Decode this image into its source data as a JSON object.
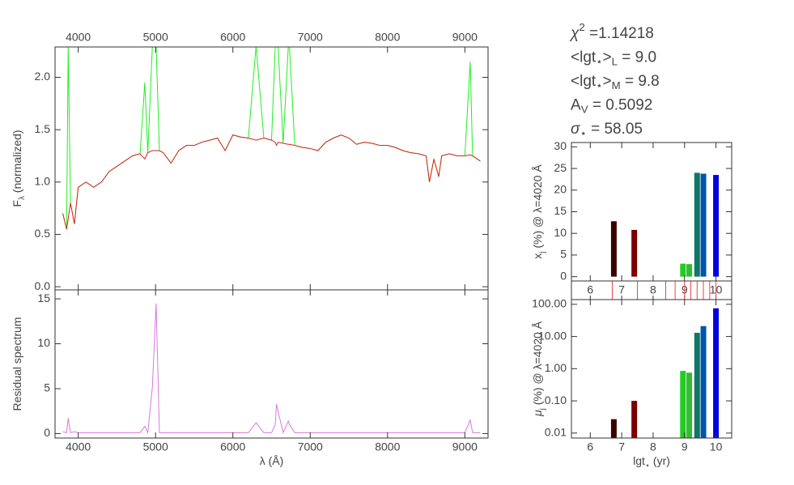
{
  "chart_data": [
    {
      "type": "line",
      "annotations": [
        [
          {
            "text": "χ"
          },
          {
            "sup": "2"
          },
          {
            "text": " =1.14218"
          }
        ],
        [
          {
            "text": "<lgt"
          },
          {
            "sub": "⋆"
          },
          {
            "text": ">"
          },
          {
            "sub": "L"
          },
          {
            "text": " = 9.0"
          }
        ],
        [
          {
            "text": "<lgt"
          },
          {
            "sub": "⋆"
          },
          {
            "text": ">"
          },
          {
            "sub": "M"
          },
          {
            "text": " = 9.8"
          }
        ],
        [
          {
            "text": "A"
          },
          {
            "sub": "V"
          },
          {
            "text": " = 0.5092"
          }
        ],
        [
          {
            "text": "σ"
          },
          {
            "sub": "⋆"
          },
          {
            "text": " = 58.05"
          }
        ]
      ],
      "ylabel": [
        {
          "text": "F"
        },
        {
          "sub": "λ"
        },
        {
          "text": " (normalized)"
        }
      ],
      "x": [
        3800,
        3850,
        3870,
        3900,
        3950,
        4000,
        4100,
        4200,
        4300,
        4400,
        4500,
        4600,
        4700,
        4800,
        4861,
        4900,
        4959,
        5007,
        5050,
        5100,
        5200,
        5300,
        5400,
        5500,
        5600,
        5700,
        5800,
        5900,
        6000,
        6100,
        6200,
        6300,
        6400,
        6500,
        6548,
        6563,
        6584,
        6650,
        6717,
        6731,
        6800,
        6900,
        7000,
        7100,
        7200,
        7300,
        7400,
        7500,
        7600,
        7700,
        7800,
        7900,
        8000,
        8100,
        8200,
        8300,
        8400,
        8500,
        8542,
        8600,
        8662,
        8700,
        8800,
        8900,
        9000,
        9069,
        9100,
        9200
      ],
      "series": [
        {
          "color": "#22ee22",
          "values": [
            0.7,
            0.55,
            2.3,
            0.8,
            0.6,
            0.95,
            1.0,
            0.95,
            1.0,
            1.1,
            1.15,
            1.2,
            1.25,
            1.27,
            1.95,
            1.28,
            2.3,
            2.3,
            1.3,
            1.28,
            1.18,
            1.3,
            1.35,
            1.35,
            1.38,
            1.4,
            1.42,
            1.3,
            1.45,
            1.43,
            1.42,
            2.3,
            1.42,
            1.4,
            2.3,
            2.3,
            2.3,
            1.37,
            2.3,
            2.3,
            1.35,
            1.33,
            1.32,
            1.3,
            1.38,
            1.42,
            1.45,
            1.42,
            1.36,
            1.38,
            1.37,
            1.35,
            1.35,
            1.33,
            1.3,
            1.28,
            1.27,
            1.25,
            1.0,
            1.22,
            1.05,
            1.25,
            1.27,
            1.25,
            1.25,
            2.15,
            1.25,
            1.2
          ]
        },
        {
          "color": "#dd2222",
          "values": [
            0.7,
            0.55,
            0.65,
            0.8,
            0.6,
            0.95,
            1.0,
            0.95,
            1.0,
            1.1,
            1.15,
            1.2,
            1.25,
            1.27,
            1.22,
            1.28,
            1.3,
            1.3,
            1.3,
            1.28,
            1.18,
            1.3,
            1.35,
            1.35,
            1.38,
            1.4,
            1.42,
            1.3,
            1.45,
            1.43,
            1.42,
            1.4,
            1.42,
            1.4,
            1.38,
            1.35,
            1.38,
            1.37,
            1.36,
            1.36,
            1.35,
            1.33,
            1.32,
            1.3,
            1.38,
            1.42,
            1.45,
            1.42,
            1.36,
            1.38,
            1.37,
            1.35,
            1.35,
            1.33,
            1.3,
            1.28,
            1.27,
            1.25,
            1.0,
            1.22,
            1.05,
            1.25,
            1.27,
            1.25,
            1.25,
            1.26,
            1.25,
            1.2
          ]
        }
      ],
      "xlim": [
        3700,
        9300
      ],
      "ylim": [
        -0.03,
        2.29
      ],
      "xticks": [
        4000,
        5000,
        6000,
        7000,
        8000,
        9000
      ],
      "yticks": [
        {
          "value": 0,
          "label": "0.0"
        },
        0.5,
        {
          "value": 1,
          "label": "1.0"
        },
        1.5,
        {
          "value": 2,
          "label": "2.0"
        }
      ]
    },
    {
      "type": "line",
      "ylabel": [
        {
          "text": "Residual spectrum"
        }
      ],
      "xlabel": [
        {
          "text": "λ (Å)"
        }
      ],
      "x": [
        3800,
        3850,
        3870,
        3900,
        3950,
        4000,
        4100,
        4200,
        4300,
        4400,
        4500,
        4600,
        4700,
        4800,
        4861,
        4900,
        4959,
        5007,
        5050,
        5100,
        5200,
        5300,
        5400,
        5500,
        5600,
        5700,
        5800,
        5900,
        6000,
        6100,
        6200,
        6300,
        6400,
        6500,
        6548,
        6563,
        6584,
        6650,
        6717,
        6731,
        6800,
        6900,
        7000,
        7100,
        7200,
        7300,
        7400,
        7500,
        7600,
        7700,
        7800,
        7900,
        8000,
        8100,
        8200,
        8300,
        8400,
        8500,
        8542,
        8600,
        8662,
        8700,
        8800,
        8900,
        9000,
        9069,
        9100,
        9200
      ],
      "series": [
        {
          "color": "#dd77dd",
          "values": [
            0.2,
            0.1,
            1.7,
            0.1,
            0.2,
            0.1,
            0.1,
            0.1,
            0.1,
            0.1,
            0.1,
            0.1,
            0.1,
            0.1,
            0.8,
            0.1,
            5.2,
            14.5,
            0.1,
            0.1,
            0.1,
            0.1,
            0.1,
            0.1,
            0.1,
            0.1,
            0.1,
            0.1,
            0.1,
            0.1,
            0.1,
            1.2,
            0.1,
            0.1,
            1.0,
            3.3,
            2.5,
            0.1,
            1.4,
            1.0,
            0.1,
            0.1,
            0.1,
            0.1,
            0.1,
            0.1,
            0.1,
            0.1,
            0.1,
            0.1,
            0.1,
            0.1,
            0.1,
            0.1,
            0.1,
            0.1,
            0.1,
            0.1,
            0.1,
            0.1,
            0.1,
            0.1,
            0.1,
            0.1,
            0.1,
            1.5,
            0.1,
            0.1
          ]
        }
      ],
      "xlim": [
        3700,
        9300
      ],
      "ylim": [
        -0.5,
        16
      ],
      "xticks": [
        4000,
        5000,
        6000,
        7000,
        8000,
        9000
      ],
      "yticks": [
        0,
        5,
        10,
        15
      ]
    },
    {
      "type": "bar",
      "ylabel": [
        {
          "text": "x"
        },
        {
          "sub": "j"
        },
        {
          "text": " (%) @ λ=4020 Å"
        }
      ],
      "x": [
        6.75,
        7.4,
        8.95,
        9.15,
        9.4,
        9.6,
        10.0
      ],
      "values": [
        12.8,
        10.8,
        3.0,
        2.9,
        24.0,
        23.8,
        23.5
      ],
      "colors": [
        "#3b0000",
        "#7a0000",
        "#22cc22",
        "#33bb33",
        "#117766",
        "#0055aa",
        "#0000dd"
      ],
      "age_markers": [
        6.7,
        7.5,
        8.4,
        8.7,
        9.0,
        9.2,
        9.4,
        9.6,
        9.8,
        10.0
      ],
      "marker_color": "#ee4444",
      "xlim": [
        5.4,
        10.5
      ],
      "ylim": [
        -1,
        31
      ],
      "xticks": [
        6,
        7,
        8,
        9,
        10
      ],
      "yticks": [
        0,
        5,
        10,
        15,
        20,
        25,
        30
      ]
    },
    {
      "type": "bar",
      "ylog": true,
      "ylabel": [
        {
          "text": "μ"
        },
        {
          "sub": "j"
        },
        {
          "text": " (%) @ λ=4020 Å"
        }
      ],
      "xlabel": [
        {
          "text": "lgt"
        },
        {
          "sub": "⋆"
        },
        {
          "text": " (yr)"
        }
      ],
      "x": [
        6.75,
        7.4,
        8.95,
        9.15,
        9.4,
        9.6,
        10.0
      ],
      "values": [
        0.027,
        0.1,
        0.85,
        0.75,
        13,
        21,
        75
      ],
      "colors": [
        "#3b0000",
        "#7a0000",
        "#22cc22",
        "#33bb33",
        "#117766",
        "#0055aa",
        "#0000dd"
      ],
      "xlim": [
        5.4,
        10.5
      ],
      "ylim": [
        0.007,
        140
      ],
      "xticks": [
        6,
        7,
        8,
        9,
        10
      ],
      "yticks": [
        0.01,
        {
          "value": 0.1,
          "label": "0.10"
        },
        {
          "value": 1,
          "label": "1.00"
        },
        {
          "value": 10,
          "label": "10.00"
        },
        {
          "value": 100,
          "label": "100.00"
        }
      ]
    }
  ]
}
